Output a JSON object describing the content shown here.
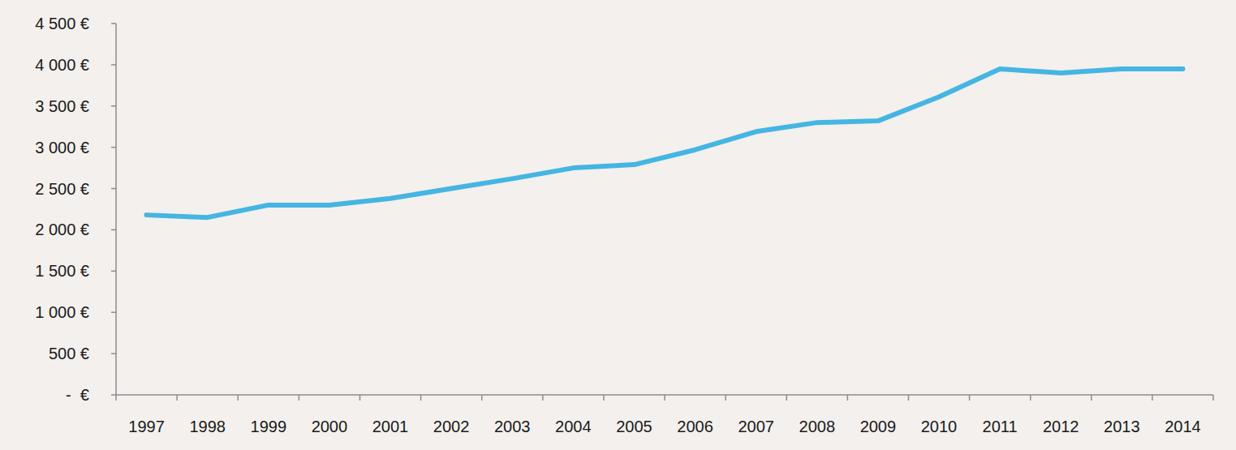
{
  "chart_data": {
    "type": "line",
    "categories": [
      "1997",
      "1998",
      "1999",
      "2000",
      "2001",
      "2002",
      "2003",
      "2004",
      "2005",
      "2006",
      "2007",
      "2008",
      "2009",
      "2010",
      "2011",
      "2012",
      "2013",
      "2014"
    ],
    "values": [
      2180,
      2150,
      2300,
      2300,
      2380,
      2500,
      2620,
      2750,
      2790,
      2970,
      3190,
      3300,
      3320,
      3610,
      3950,
      3900,
      3950,
      3950
    ],
    "color": "#45b5e3",
    "ylim": [
      0,
      4500
    ],
    "yticks": [
      {
        "value": 0,
        "label": "-  €"
      },
      {
        "value": 500,
        "label": "500 €"
      },
      {
        "value": 1000,
        "label": "1 000 €"
      },
      {
        "value": 1500,
        "label": "1 500 €"
      },
      {
        "value": 2000,
        "label": "2 000 €"
      },
      {
        "value": 2500,
        "label": "2 500 €"
      },
      {
        "value": 3000,
        "label": "3 000 €"
      },
      {
        "value": 3500,
        "label": "3 500 €"
      },
      {
        "value": 4000,
        "label": "4 000 €"
      },
      {
        "value": 4500,
        "label": "4 500 €"
      }
    ],
    "grid": false
  }
}
